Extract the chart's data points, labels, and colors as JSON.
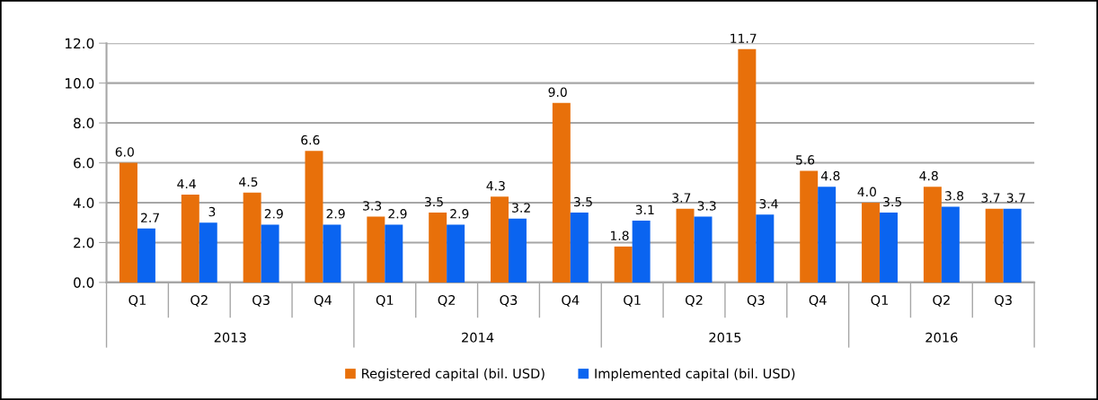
{
  "chart_data": {
    "type": "bar",
    "categories": [
      "Q1",
      "Q2",
      "Q3",
      "Q4",
      "Q1",
      "Q2",
      "Q3",
      "Q4",
      "Q1",
      "Q2",
      "Q3",
      "Q4",
      "Q1",
      "Q2",
      "Q3"
    ],
    "annotations": [
      "2013",
      "2014",
      "2015",
      "2016"
    ],
    "series": [
      {
        "name": "Registered capital (bil. USD)",
        "color": "#e8700a",
        "values": [
          6.0,
          4.4,
          4.5,
          6.6,
          3.3,
          3.5,
          4.3,
          9.0,
          1.8,
          3.7,
          11.7,
          5.6,
          4.0,
          4.8,
          3.7
        ],
        "value_labels": [
          "6.0",
          "4.4",
          "4.5",
          "6.6",
          "3.3",
          "3.5",
          "4.3",
          "9.0",
          "1.8",
          "3.7",
          "11.7",
          "5.6",
          "4.0",
          "4.8",
          "3.7"
        ]
      },
      {
        "name": "Implemented capital (bil. USD)",
        "color": "#0a64f0",
        "values": [
          2.7,
          3,
          2.9,
          2.9,
          2.9,
          2.9,
          3.2,
          3.5,
          3.1,
          3.3,
          3.4,
          4.8,
          3.5,
          3.8,
          3.7
        ],
        "value_labels": [
          "2.7",
          "3",
          "2.9",
          "2.9",
          "2.9",
          "2.9",
          "3.2",
          "3.5",
          "3.1",
          "3.3",
          "3.4",
          "4.8",
          "3.5",
          "3.8",
          "3.7"
        ]
      }
    ],
    "ylim": [
      0,
      12
    ],
    "yticks": [
      {
        "value": 0,
        "label": "0.0"
      },
      {
        "value": 2,
        "label": "2.0"
      },
      {
        "value": 4,
        "label": "4.0"
      },
      {
        "value": 6,
        "label": "6.0"
      },
      {
        "value": 8,
        "label": "8.0"
      },
      {
        "value": 10,
        "label": "10.0"
      },
      {
        "value": 12,
        "label": "12.0"
      }
    ],
    "grid": "y",
    "legend": "bottom"
  }
}
